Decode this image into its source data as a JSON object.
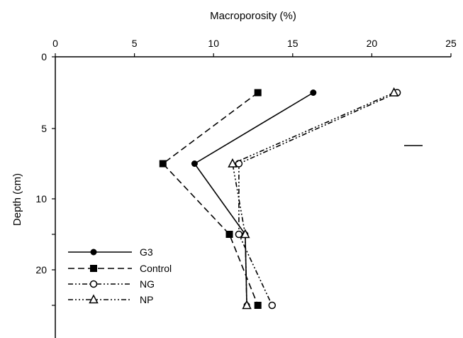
{
  "chart_data": {
    "type": "line",
    "title": "",
    "xlabel": "Macroporosity (%)",
    "ylabel": "Depth (cm)",
    "x_axis_position": "top",
    "xlim": [
      0,
      25
    ],
    "x_ticks": [
      "0",
      "5",
      "10",
      "15",
      "20",
      "25"
    ],
    "y_tick_labels": [
      "0",
      "5",
      "10",
      "",
      "20",
      ""
    ],
    "y_tick_depths": [
      0,
      5,
      10,
      15,
      20,
      25
    ],
    "y_inverted": true,
    "grid": false,
    "legend_position": "bottom-left",
    "y": [
      2.5,
      7.5,
      15,
      25
    ],
    "series": [
      {
        "name": "G3",
        "values": [
          16.3,
          8.8,
          12.0,
          12.1
        ],
        "marker": "circle-filled",
        "dash": "solid"
      },
      {
        "name": "Control",
        "values": [
          12.8,
          6.8,
          11.0,
          12.8
        ],
        "marker": "square-filled",
        "dash": "dash"
      },
      {
        "name": "NG",
        "values": [
          21.6,
          11.6,
          11.6,
          13.7
        ],
        "marker": "circle-open",
        "dash": "dash-dot-dot"
      },
      {
        "name": "NP",
        "values": [
          21.4,
          11.2,
          12.0,
          12.1
        ],
        "marker": "triangle-open",
        "dash": "dash-dot-dot-dot"
      }
    ]
  }
}
